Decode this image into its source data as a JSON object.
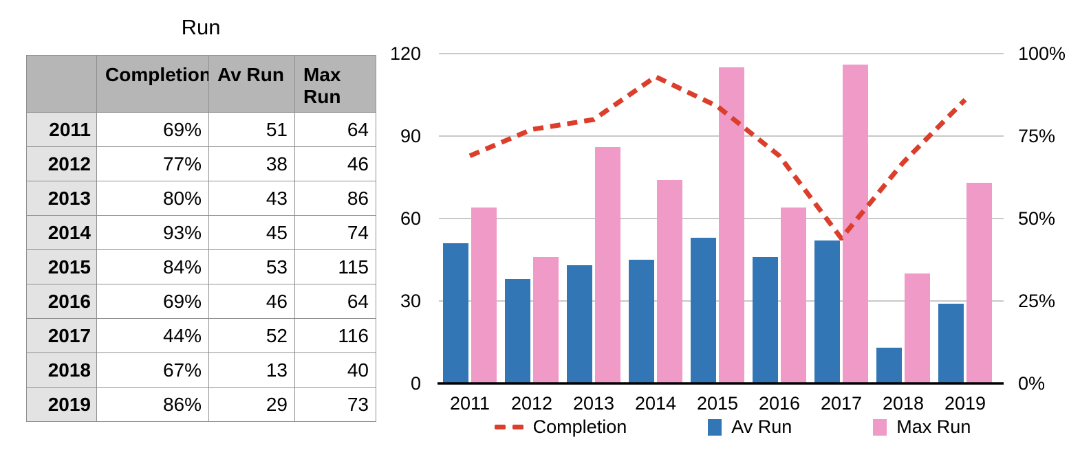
{
  "table": {
    "title": "Run",
    "columns": [
      "",
      "Completion",
      "Av Run",
      "Max Run"
    ],
    "rows": [
      [
        "2011",
        "69%",
        "51",
        "64"
      ],
      [
        "2012",
        "77%",
        "38",
        "46"
      ],
      [
        "2013",
        "80%",
        "43",
        "86"
      ],
      [
        "2014",
        "93%",
        "45",
        "74"
      ],
      [
        "2015",
        "84%",
        "53",
        "115"
      ],
      [
        "2016",
        "69%",
        "46",
        "64"
      ],
      [
        "2017",
        "44%",
        "52",
        "116"
      ],
      [
        "2018",
        "67%",
        "13",
        "40"
      ],
      [
        "2019",
        "86%",
        "29",
        "73"
      ]
    ]
  },
  "chart_data": {
    "type": "combo",
    "title": "",
    "categories": [
      "2011",
      "2012",
      "2013",
      "2014",
      "2015",
      "2016",
      "2017",
      "2018",
      "2019"
    ],
    "series": [
      {
        "name": "Completion",
        "type": "line",
        "axis": "right",
        "color": "#db3e2b",
        "unit": "%",
        "values": [
          69,
          77,
          80,
          93,
          84,
          69,
          44,
          67,
          86
        ]
      },
      {
        "name": "Av Run",
        "type": "bar",
        "axis": "left",
        "color": "#3276b5",
        "values": [
          51,
          38,
          43,
          45,
          53,
          46,
          52,
          13,
          29
        ]
      },
      {
        "name": "Max Run",
        "type": "bar",
        "axis": "left",
        "color": "#f09ac8",
        "values": [
          64,
          46,
          86,
          74,
          115,
          64,
          116,
          40,
          73
        ]
      }
    ],
    "left_axis": {
      "min": 0,
      "max": 120,
      "tick_labels": [
        "0",
        "30",
        "60",
        "90",
        "120"
      ]
    },
    "right_axis": {
      "min": 0,
      "max": 100,
      "tick_labels": [
        "0%",
        "25%",
        "50%",
        "75%",
        "100%"
      ]
    },
    "grid": true,
    "legend_position": "bottom",
    "gridline_color": "#c9c9c9",
    "axis_line_color": "#000000"
  }
}
